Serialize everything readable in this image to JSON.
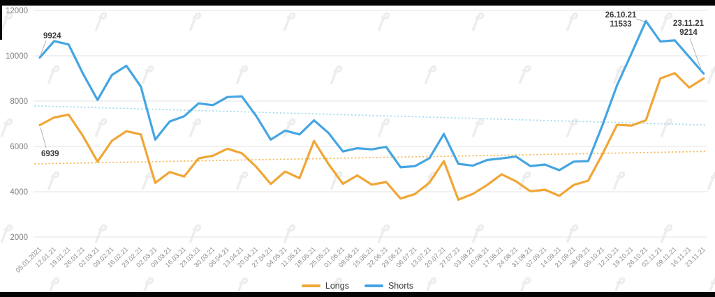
{
  "chart_data": {
    "type": "line",
    "title": "",
    "categories": [
      "05.01.2021",
      "12.01.21",
      "19.01.21",
      "26.01.21",
      "02.03.21",
      "09.02.21",
      "16.02.21",
      "23.02.21",
      "02.03.21",
      "09.03.21",
      "16.03.21",
      "23.03.21",
      "30.03.21",
      "06.04.21",
      "13.04.21",
      "20.04.21",
      "27.04.21",
      "04.05.21",
      "11.05.21",
      "18.05.21",
      "25.05.21",
      "01.06.21",
      "08.06.21",
      "15.06.21",
      "22.06.21",
      "29.06.21",
      "06.07.21",
      "13.07.21",
      "20.07.21",
      "27.07.21",
      "03.08.21",
      "10.08.21",
      "17.08.21",
      "24.08.21",
      "31.08.21",
      "07.09.21",
      "14.09.21",
      "21.09.21",
      "28.09.21",
      "05.10.21",
      "12.10.21",
      "19.10.21",
      "26.10.21",
      "02.11.21",
      "09.11.21",
      "16.11.21",
      "23.11.21"
    ],
    "series": [
      {
        "name": "Longs",
        "color": "#F0A636",
        "values": [
          6939,
          7280,
          7400,
          6450,
          5330,
          6250,
          6670,
          6530,
          4390,
          4870,
          4670,
          5470,
          5590,
          5900,
          5700,
          5100,
          4340,
          4890,
          4600,
          6240,
          5230,
          4350,
          4720,
          4310,
          4430,
          3700,
          3900,
          4400,
          5350,
          3650,
          3900,
          4300,
          4770,
          4460,
          4020,
          4090,
          3820,
          4300,
          4490,
          5670,
          6950,
          6920,
          7150,
          9000,
          9230,
          8600,
          9000
        ]
      },
      {
        "name": "Shorts",
        "color": "#45A5E2",
        "values": [
          9924,
          10650,
          10500,
          9200,
          8050,
          9150,
          9560,
          8640,
          6300,
          7100,
          7330,
          7900,
          7820,
          8180,
          8210,
          7340,
          6300,
          6700,
          6530,
          7150,
          6600,
          5780,
          5920,
          5870,
          5980,
          5080,
          5130,
          5480,
          6550,
          5230,
          5150,
          5400,
          5470,
          5550,
          5130,
          5200,
          4950,
          5330,
          5350,
          6950,
          8700,
          10100,
          11533,
          10630,
          10680,
          9950,
          9214
        ]
      }
    ],
    "trend_lines": [
      {
        "name": "Longs trend",
        "color": "#F4BE63",
        "style": "dotted",
        "start": 5230,
        "end": 5780
      },
      {
        "name": "Shorts trend",
        "color": "#ABDDF2",
        "style": "dotted",
        "start": 7790,
        "end": 6940
      }
    ],
    "annotations": [
      {
        "series": "Shorts",
        "category": "05.01.2021",
        "lines": [
          "9924"
        ]
      },
      {
        "series": "Longs",
        "category": "05.01.2021",
        "lines": [
          "6939"
        ]
      },
      {
        "series": "Shorts",
        "category": "26.10.21",
        "lines": [
          "26.10.21",
          "11533"
        ]
      },
      {
        "series": "Shorts",
        "category": "23.11.21",
        "lines": [
          "23.11.21",
          "9214"
        ]
      }
    ],
    "y_axis": {
      "ticks": [
        12000,
        10000,
        8000,
        6000,
        4000,
        2000
      ],
      "min": 2000,
      "max": 12000
    },
    "x_axis": {
      "label_rotation": -45
    },
    "legend": {
      "position": "bottom",
      "items": [
        "Longs",
        "Shorts"
      ]
    },
    "grid": "horizontal"
  },
  "colors": {
    "background": "#ffffff",
    "gridline": "#e3e3e3",
    "y_label": "#7c7c7c",
    "x_label": "#8e8e8e",
    "annotation_text": "#3a3a3a",
    "annotation_pointer": "#b3b3b3",
    "watermark": "#ededed",
    "frame_bars": "#050505"
  }
}
